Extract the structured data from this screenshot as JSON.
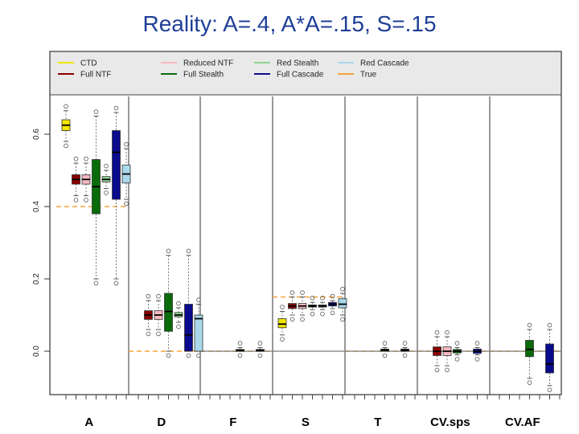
{
  "title": "Reality: A=.4, A*A=.15, S=.15",
  "chart_data": {
    "type": "box",
    "groups": [
      "A",
      "D",
      "F",
      "S",
      "T",
      "CV.sps",
      "CV.AF"
    ],
    "legend": [
      {
        "label": "CTD",
        "color": "#f2e600"
      },
      {
        "label": "Reduced NTF",
        "color": "#f7b9c0"
      },
      {
        "label": "Red Stealth",
        "color": "#8fd58f"
      },
      {
        "label": "Red Cascade",
        "color": "#a9d8ea"
      },
      {
        "label": "Full NTF",
        "color": "#8b0000"
      },
      {
        "label": "Full Stealth",
        "color": "#0a6b0a"
      },
      {
        "label": "Full Cascade",
        "color": "#0a0a8c"
      },
      {
        "label": "True",
        "color": "#f5a33a"
      }
    ],
    "y_ticks": [
      "0.0",
      "0.2",
      "0.4",
      "0.6"
    ],
    "ylim": [
      -0.13,
      0.72
    ],
    "series": [
      {
        "name": "CTD",
        "color": "#f2e600",
        "boxes": [
          {
            "group": "A",
            "q1": 0.61,
            "med": 0.625,
            "q3": 0.64,
            "lo": 0.58,
            "hi": 0.665
          },
          {
            "group": "S",
            "q1": 0.065,
            "med": 0.075,
            "q3": 0.09,
            "lo": 0.045,
            "hi": 0.11
          }
        ]
      },
      {
        "name": "Full NTF",
        "color": "#8b0000",
        "boxes": [
          {
            "group": "A",
            "q1": 0.462,
            "med": 0.475,
            "q3": 0.488,
            "lo": 0.43,
            "hi": 0.52
          },
          {
            "group": "D",
            "q1": 0.088,
            "med": 0.1,
            "q3": 0.112,
            "lo": 0.06,
            "hi": 0.14
          },
          {
            "group": "S",
            "q1": 0.118,
            "med": 0.125,
            "q3": 0.132,
            "lo": 0.1,
            "hi": 0.15
          },
          {
            "group": "CV.sps",
            "q1": -0.012,
            "med": 0.0,
            "q3": 0.012,
            "lo": -0.04,
            "hi": 0.04
          }
        ]
      },
      {
        "name": "Reduced NTF",
        "color": "#f7b9c0",
        "boxes": [
          {
            "group": "A",
            "q1": 0.462,
            "med": 0.475,
            "q3": 0.488,
            "lo": 0.43,
            "hi": 0.52
          },
          {
            "group": "D",
            "q1": 0.088,
            "med": 0.1,
            "q3": 0.112,
            "lo": 0.06,
            "hi": 0.14
          },
          {
            "group": "S",
            "q1": 0.118,
            "med": 0.125,
            "q3": 0.132,
            "lo": 0.1,
            "hi": 0.15
          },
          {
            "group": "CV.sps",
            "q1": -0.012,
            "med": 0.0,
            "q3": 0.012,
            "lo": -0.04,
            "hi": 0.04
          }
        ]
      },
      {
        "name": "Full Stealth",
        "color": "#0a6b0a",
        "boxes": [
          {
            "group": "A",
            "q1": 0.38,
            "med": 0.455,
            "q3": 0.53,
            "lo": 0.2,
            "hi": 0.65
          },
          {
            "group": "D",
            "q1": 0.055,
            "med": 0.11,
            "q3": 0.16,
            "lo": 0.0,
            "hi": 0.265
          },
          {
            "group": "F",
            "q1": 0.0,
            "med": 0.002,
            "q3": 0.005,
            "lo": 0.0,
            "hi": 0.01
          },
          {
            "group": "S",
            "q1": 0.122,
            "med": 0.125,
            "q3": 0.128,
            "lo": 0.115,
            "hi": 0.135
          },
          {
            "group": "T",
            "q1": 0.0,
            "med": 0.003,
            "q3": 0.006,
            "lo": 0.0,
            "hi": 0.01
          },
          {
            "group": "CV.sps",
            "q1": -0.005,
            "med": 0.0,
            "q3": 0.005,
            "lo": -0.01,
            "hi": 0.01
          },
          {
            "group": "CV.AF",
            "q1": -0.015,
            "med": 0.005,
            "q3": 0.03,
            "lo": -0.075,
            "hi": 0.06
          }
        ]
      },
      {
        "name": "Red Stealth",
        "color": "#8fd58f",
        "boxes": [
          {
            "group": "A",
            "q1": 0.468,
            "med": 0.475,
            "q3": 0.483,
            "lo": 0.45,
            "hi": 0.5
          },
          {
            "group": "D",
            "q1": 0.095,
            "med": 0.1,
            "q3": 0.107,
            "lo": 0.08,
            "hi": 0.12
          },
          {
            "group": "S",
            "q1": 0.122,
            "med": 0.125,
            "q3": 0.128,
            "lo": 0.115,
            "hi": 0.135
          }
        ]
      },
      {
        "name": "Full Cascade",
        "color": "#0a0a8c",
        "boxes": [
          {
            "group": "A",
            "q1": 0.42,
            "med": 0.55,
            "q3": 0.61,
            "lo": 0.2,
            "hi": 0.66
          },
          {
            "group": "D",
            "q1": 0.0,
            "med": 0.045,
            "q3": 0.13,
            "lo": 0.0,
            "hi": 0.265
          },
          {
            "group": "F",
            "q1": 0.0,
            "med": 0.002,
            "q3": 0.005,
            "lo": 0.0,
            "hi": 0.01
          },
          {
            "group": "S",
            "q1": 0.125,
            "med": 0.13,
            "q3": 0.135,
            "lo": 0.118,
            "hi": 0.14
          },
          {
            "group": "T",
            "q1": 0.0,
            "med": 0.003,
            "q3": 0.006,
            "lo": 0.0,
            "hi": 0.01
          },
          {
            "group": "CV.sps",
            "q1": -0.006,
            "med": 0.0,
            "q3": 0.006,
            "lo": -0.01,
            "hi": 0.01
          },
          {
            "group": "CV.AF",
            "q1": -0.06,
            "med": -0.035,
            "q3": 0.02,
            "lo": -0.095,
            "hi": 0.06
          }
        ]
      },
      {
        "name": "Red Cascade",
        "color": "#a9d8ea",
        "boxes": [
          {
            "group": "A",
            "q1": 0.465,
            "med": 0.49,
            "q3": 0.515,
            "lo": 0.42,
            "hi": 0.56
          },
          {
            "group": "D",
            "q1": 0.0,
            "med": 0.09,
            "q3": 0.1,
            "lo": 0.0,
            "hi": 0.13
          },
          {
            "group": "S",
            "q1": 0.12,
            "med": 0.13,
            "q3": 0.145,
            "lo": 0.1,
            "hi": 0.16
          }
        ]
      },
      {
        "name": "True",
        "color": "#f5a33a",
        "true_values": [
          {
            "group": "A",
            "value": 0.4
          },
          {
            "group": "D",
            "value": 0.0
          },
          {
            "group": "F",
            "value": 0.0
          },
          {
            "group": "S",
            "value": 0.15
          },
          {
            "group": "T",
            "value": 0.0
          },
          {
            "group": "CV.sps",
            "value": 0.0
          },
          {
            "group": "CV.AF",
            "value": 0.0
          }
        ]
      }
    ]
  }
}
